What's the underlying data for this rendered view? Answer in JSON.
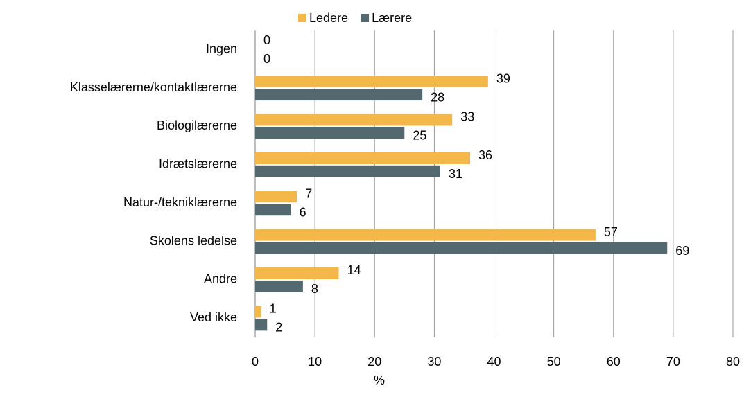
{
  "chart_data": {
    "type": "bar",
    "orientation": "horizontal",
    "categories": [
      "Ingen",
      "Klasselærerne/kontaktlærerne",
      "Biologilærerne",
      "Idrætslærerne",
      "Natur-/tekniklærerne",
      "Skolens ledelse",
      "Andre",
      "Ved ikke"
    ],
    "series": [
      {
        "name": "Ledere",
        "color": "#f4b84a",
        "values": [
          0,
          39,
          33,
          36,
          7,
          57,
          14,
          1
        ]
      },
      {
        "name": "Lærere",
        "color": "#546870",
        "values": [
          0,
          28,
          25,
          31,
          6,
          69,
          8,
          2
        ]
      }
    ],
    "x_label": "%",
    "xlim": [
      0,
      80
    ],
    "xticks": [
      0,
      10,
      20,
      30,
      40,
      50,
      60,
      70,
      80
    ],
    "grid": true,
    "legend": "top"
  }
}
